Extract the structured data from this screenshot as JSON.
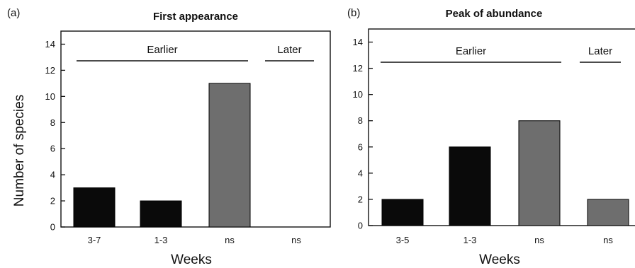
{
  "chart_data": [
    {
      "type": "bar",
      "panel_label": "(a)",
      "title": "First appearance",
      "xlabel": "Weeks",
      "ylabel": "Number of species",
      "ylim": [
        0,
        15
      ],
      "yticks": [
        0,
        2,
        4,
        6,
        8,
        10,
        12,
        14
      ],
      "categories": [
        "3-7",
        "1-3",
        "ns",
        "ns"
      ],
      "values": [
        3,
        2,
        11,
        0
      ],
      "bar_colors": [
        "#0a0a0a",
        "#0a0a0a",
        "#6e6e6e",
        "#6e6e6e"
      ],
      "groups": [
        {
          "label": "Earlier",
          "from": 0,
          "to": 2
        },
        {
          "label": "Later",
          "from": 3,
          "to": 3
        }
      ],
      "grid": false
    },
    {
      "type": "bar",
      "panel_label": "(b)",
      "title": "Peak of abundance",
      "xlabel": "Weeks",
      "ylabel": "",
      "ylim": [
        0,
        15
      ],
      "yticks": [
        0,
        2,
        4,
        6,
        8,
        10,
        12,
        14
      ],
      "categories": [
        "3-5",
        "1-3",
        "ns",
        "ns"
      ],
      "values": [
        2,
        6,
        8,
        2
      ],
      "bar_colors": [
        "#0a0a0a",
        "#0a0a0a",
        "#6e6e6e",
        "#6e6e6e"
      ],
      "groups": [
        {
          "label": "Earlier",
          "from": 0,
          "to": 2
        },
        {
          "label": "Later",
          "from": 3,
          "to": 3
        }
      ],
      "grid": false
    }
  ]
}
